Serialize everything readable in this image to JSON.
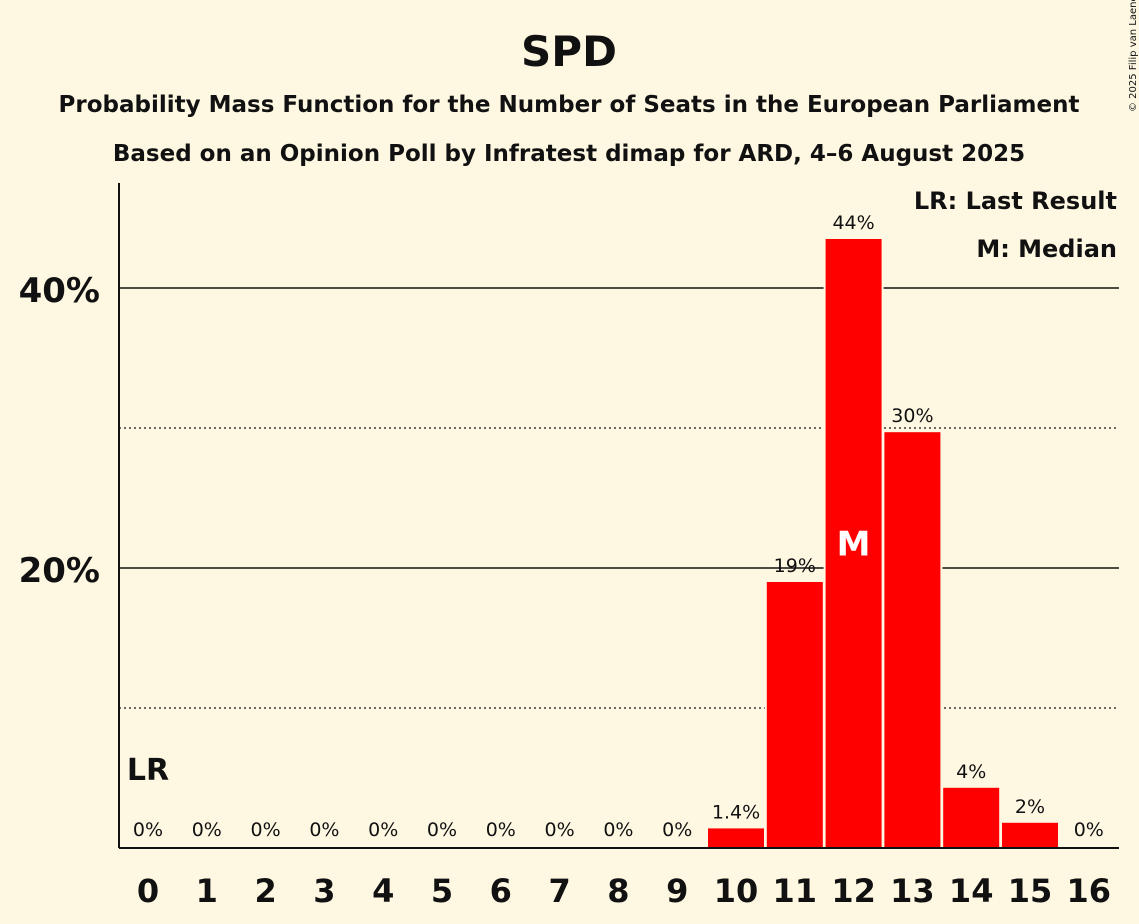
{
  "title": "SPD",
  "subtitle1": "Probability Mass Function for the Number of Seats in the European Parliament",
  "subtitle2": "Based on an Opinion Poll by Infratest dimap for ARD, 4–6 August 2025",
  "copyright": "© 2025 Filip van Laenen",
  "legend": {
    "lr": "LR: Last Result",
    "median": "M: Median"
  },
  "lr_label": "LR",
  "median_label": "M",
  "colors": {
    "bar": "#ff0000",
    "background": "#fef8e3",
    "text": "#111111"
  },
  "chart_data": {
    "type": "bar",
    "categories": [
      "0",
      "1",
      "2",
      "3",
      "4",
      "5",
      "6",
      "7",
      "8",
      "9",
      "10",
      "11",
      "12",
      "13",
      "14",
      "15",
      "16"
    ],
    "values": [
      0,
      0,
      0,
      0,
      0,
      0,
      0,
      0,
      0,
      0,
      1.4,
      19,
      43.5,
      29.7,
      4.3,
      1.8,
      0
    ],
    "data_labels": [
      "0%",
      "0%",
      "0%",
      "0%",
      "0%",
      "0%",
      "0%",
      "0%",
      "0%",
      "0%",
      "1.4%",
      "19%",
      "44%",
      "30%",
      "4%",
      "2%",
      "0%"
    ],
    "y_ticks": [
      {
        "value": 20,
        "label": "20%"
      },
      {
        "value": 40,
        "label": "40%"
      }
    ],
    "y_minor_gridlines": [
      10,
      30
    ],
    "ylim": [
      0,
      47.5
    ],
    "last_result_category": "0",
    "median_category": "12",
    "legend_position": "top-right"
  }
}
